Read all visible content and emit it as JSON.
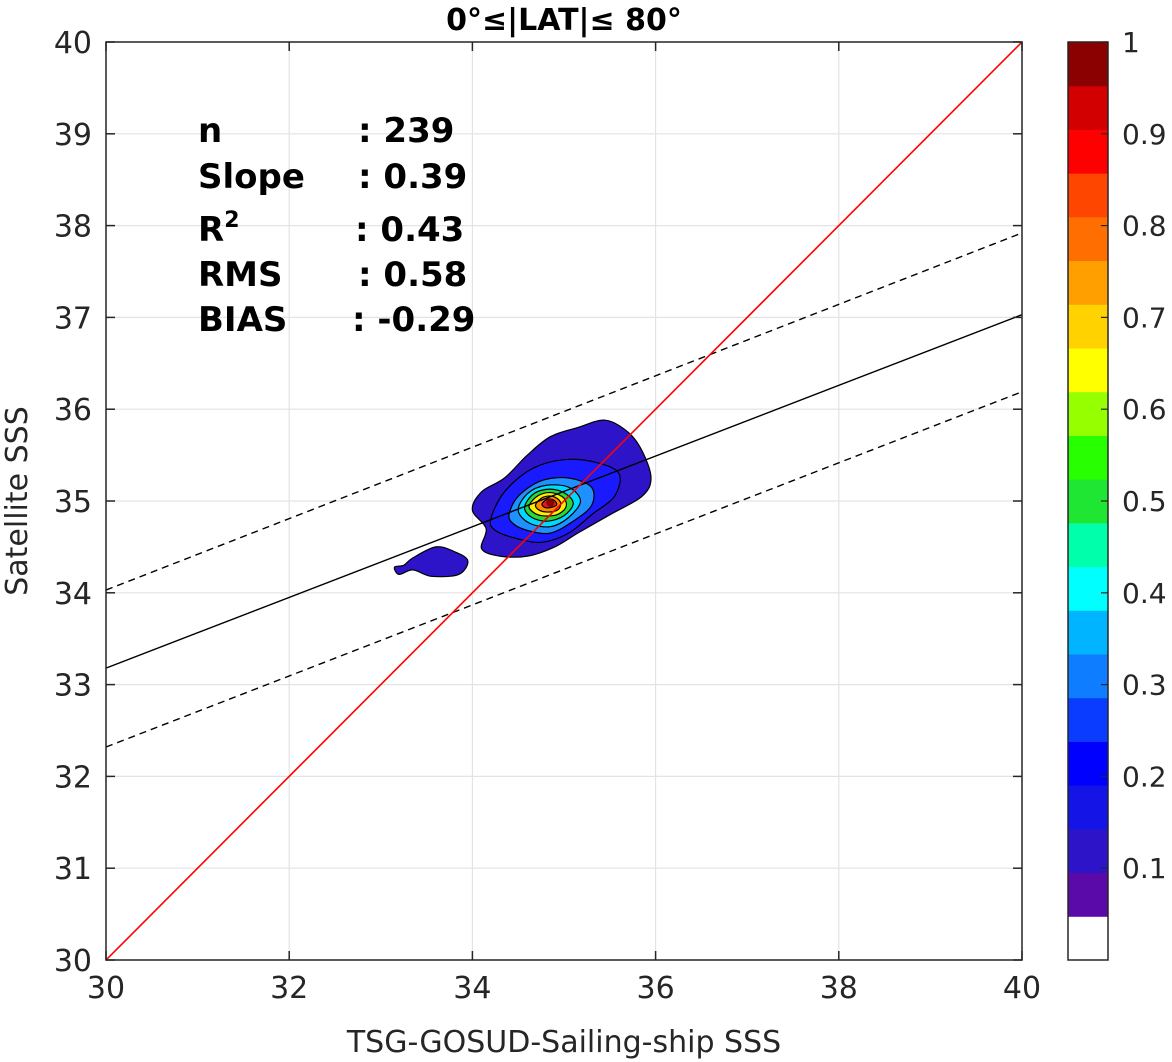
{
  "chart_data": {
    "type": "contour",
    "title": "0°≤|LAT|≤ 80°",
    "xlabel": "TSG-GOSUD-Sailing-ship SSS",
    "ylabel": "Satellite SSS",
    "xlim": [
      30,
      40
    ],
    "ylim": [
      30,
      40
    ],
    "xticks": [
      "30",
      "32",
      "34",
      "36",
      "38",
      "40"
    ],
    "yticks": [
      "30",
      "31",
      "32",
      "33",
      "34",
      "35",
      "36",
      "37",
      "38",
      "39",
      "40"
    ],
    "grid": true,
    "stats": [
      {
        "label": "n",
        "value": ": 239"
      },
      {
        "label": "Slope",
        "value": ": 0.39"
      },
      {
        "label": "R",
        "sup": "2",
        "value": ": 0.43"
      },
      {
        "label": "RMS",
        "value": ": 0.58"
      },
      {
        "label": "BIAS",
        "value": ": -0.29"
      }
    ],
    "lines": {
      "one_to_one": {
        "color": "#ff0000",
        "x": [
          30,
          40
        ],
        "y": [
          30,
          40
        ]
      },
      "regression": {
        "color": "#000000",
        "style": "solid",
        "x": [
          30,
          40
        ],
        "y": [
          33.18,
          37.03
        ]
      },
      "upper_bound": {
        "color": "#000000",
        "style": "dashed",
        "x": [
          30,
          40
        ],
        "y": [
          34.03,
          37.92
        ]
      },
      "lower_bound": {
        "color": "#000000",
        "style": "dashed",
        "x": [
          30,
          40
        ],
        "y": [
          32.32,
          36.19
        ]
      }
    },
    "density_peak": {
      "x": 34.85,
      "y": 34.98
    },
    "contour_levels": [
      {
        "level": 0.05,
        "color": "#2e14c8",
        "points": [
          [
            34.0,
            34.9
          ],
          [
            34.1,
            35.1
          ],
          [
            34.35,
            35.25
          ],
          [
            34.6,
            35.5
          ],
          [
            34.85,
            35.7
          ],
          [
            35.15,
            35.8
          ],
          [
            35.45,
            35.88
          ],
          [
            35.7,
            35.75
          ],
          [
            35.85,
            35.55
          ],
          [
            35.95,
            35.25
          ],
          [
            35.85,
            35.05
          ],
          [
            35.5,
            34.85
          ],
          [
            35.15,
            34.65
          ],
          [
            34.9,
            34.5
          ],
          [
            34.6,
            34.4
          ],
          [
            34.3,
            34.4
          ],
          [
            34.1,
            34.48
          ],
          [
            34.15,
            34.7
          ]
        ]
      },
      {
        "level": 0.05,
        "color": "#2e14c8",
        "points": [
          [
            33.25,
            34.3
          ],
          [
            33.35,
            34.38
          ],
          [
            33.6,
            34.5
          ],
          [
            33.8,
            34.45
          ],
          [
            33.95,
            34.35
          ],
          [
            33.85,
            34.2
          ],
          [
            33.55,
            34.18
          ],
          [
            33.35,
            34.25
          ],
          [
            33.2,
            34.2
          ],
          [
            33.15,
            34.28
          ]
        ]
      },
      {
        "level": 0.15,
        "color": "#1a1aff",
        "points": [
          [
            34.2,
            34.8
          ],
          [
            34.35,
            35.1
          ],
          [
            34.65,
            35.35
          ],
          [
            35.0,
            35.45
          ],
          [
            35.35,
            35.42
          ],
          [
            35.6,
            35.3
          ],
          [
            35.55,
            35.05
          ],
          [
            35.3,
            34.85
          ],
          [
            35.05,
            34.65
          ],
          [
            34.75,
            34.55
          ],
          [
            34.45,
            34.6
          ],
          [
            34.25,
            34.68
          ]
        ]
      },
      {
        "level": 0.25,
        "color": "#1e90ff",
        "points": [
          [
            34.4,
            34.85
          ],
          [
            34.5,
            35.05
          ],
          [
            34.75,
            35.22
          ],
          [
            35.05,
            35.25
          ],
          [
            35.3,
            35.15
          ],
          [
            35.3,
            34.95
          ],
          [
            35.1,
            34.78
          ],
          [
            34.85,
            34.65
          ],
          [
            34.6,
            34.68
          ],
          [
            34.45,
            34.75
          ]
        ]
      },
      {
        "level": 0.35,
        "color": "#00d9ff",
        "points": [
          [
            34.5,
            34.9
          ],
          [
            34.6,
            35.08
          ],
          [
            34.8,
            35.17
          ],
          [
            35.05,
            35.15
          ],
          [
            35.18,
            35.0
          ],
          [
            35.05,
            34.82
          ],
          [
            34.85,
            34.72
          ],
          [
            34.62,
            34.76
          ]
        ]
      },
      {
        "level": 0.45,
        "color": "#2bd53a",
        "points": [
          [
            34.57,
            34.93
          ],
          [
            34.67,
            35.08
          ],
          [
            34.85,
            35.13
          ],
          [
            35.02,
            35.08
          ],
          [
            35.1,
            34.97
          ],
          [
            35.0,
            34.84
          ],
          [
            34.82,
            34.78
          ],
          [
            34.65,
            34.82
          ]
        ]
      },
      {
        "level": 0.6,
        "color": "#ffee00",
        "points": [
          [
            34.62,
            34.95
          ],
          [
            34.72,
            35.06
          ],
          [
            34.87,
            35.09
          ],
          [
            35.0,
            35.03
          ],
          [
            35.02,
            34.93
          ],
          [
            34.92,
            34.85
          ],
          [
            34.76,
            34.84
          ],
          [
            34.66,
            34.88
          ]
        ]
      },
      {
        "level": 0.75,
        "color": "#ff8c00",
        "points": [
          [
            34.69,
            34.96
          ],
          [
            34.77,
            35.04
          ],
          [
            34.88,
            35.05
          ],
          [
            34.96,
            34.99
          ],
          [
            34.94,
            34.91
          ],
          [
            34.84,
            34.88
          ],
          [
            34.73,
            34.9
          ]
        ]
      },
      {
        "level": 0.9,
        "color": "#e41a1a",
        "points": [
          [
            34.76,
            34.97
          ],
          [
            34.82,
            35.02
          ],
          [
            34.89,
            35.01
          ],
          [
            34.92,
            34.96
          ],
          [
            34.86,
            34.93
          ],
          [
            34.79,
            34.93
          ]
        ]
      }
    ],
    "colorbar": {
      "range": [
        0,
        1
      ],
      "tick_labels": [
        "0.1",
        "0.2",
        "0.3",
        "0.4",
        "0.5",
        "0.6",
        "0.7",
        "0.8",
        "0.9",
        "1"
      ],
      "colors": [
        "#ffffff",
        "#5a0aa8",
        "#2e14c8",
        "#1414e6",
        "#0000ff",
        "#0a3cff",
        "#0f7dff",
        "#00b4ff",
        "#00ffff",
        "#00ffaa",
        "#1ee632",
        "#28ff00",
        "#96ff00",
        "#ffff00",
        "#ffd200",
        "#ffa000",
        "#ff6e00",
        "#ff4600",
        "#ff0000",
        "#d20000",
        "#8b0000"
      ]
    }
  }
}
